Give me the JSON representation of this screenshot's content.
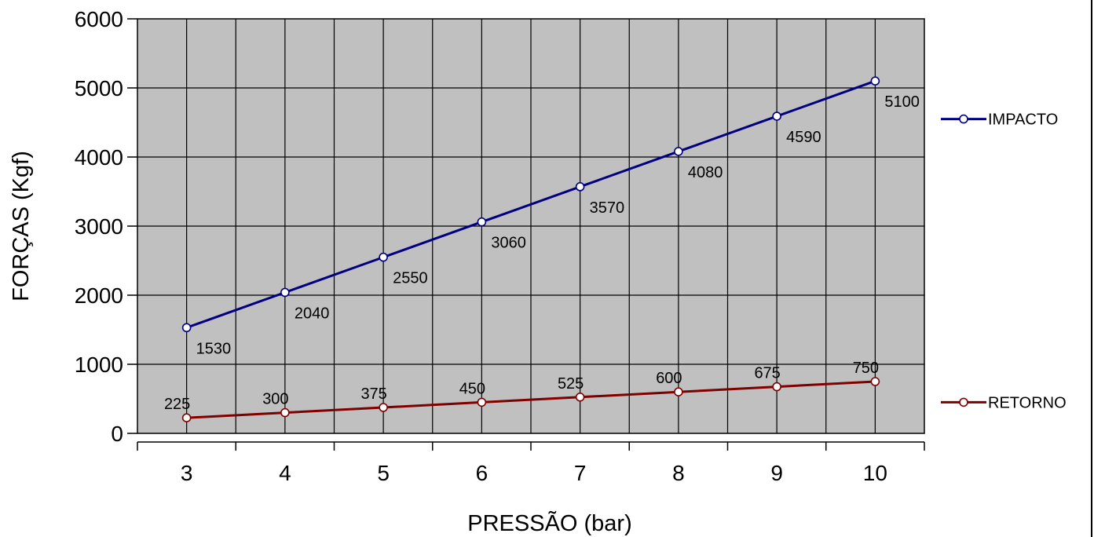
{
  "chart_data": {
    "type": "line",
    "xlabel": "PRESSÃO (bar)",
    "ylabel": "FORÇAS (Kgf)",
    "categories": [
      "3",
      "4",
      "5",
      "6",
      "7",
      "8",
      "9",
      "10"
    ],
    "ylim": [
      0,
      6000
    ],
    "yticks": [
      "0",
      "1000",
      "2000",
      "3000",
      "4000",
      "5000",
      "6000"
    ],
    "grid": true,
    "legend_position": "right",
    "colors": {
      "plot_bg": "#c0c0c0",
      "impacto": "#000080",
      "retorno": "#800000"
    },
    "series": [
      {
        "name": "IMPACTO",
        "values": [
          1530,
          2040,
          2550,
          3060,
          3570,
          4080,
          4590,
          5100
        ],
        "labels": [
          "1530",
          "2040",
          "2550",
          "3060",
          "3570",
          "4080",
          "4590",
          "5100"
        ]
      },
      {
        "name": "RETORNO",
        "values": [
          225,
          300,
          375,
          450,
          525,
          600,
          675,
          750
        ],
        "labels": [
          "225",
          "300",
          "375",
          "450",
          "525",
          "600",
          "675",
          "750"
        ]
      }
    ]
  }
}
